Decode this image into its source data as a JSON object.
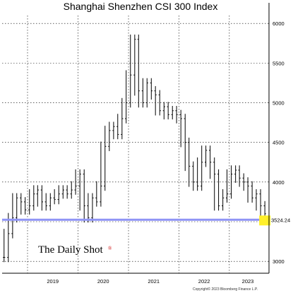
{
  "chart_data": {
    "type": "candlestick",
    "title": "Shanghai Shenzhen CSI 300 Index",
    "xlabel": "",
    "ylabel": "",
    "xlim": [
      "2018-07-01",
      "2023-10-15"
    ],
    "ylim": [
      2850,
      6100
    ],
    "y_ticks": [
      3000,
      3500,
      4000,
      4500,
      5000,
      5500,
      6000
    ],
    "x_ticks": [
      "2019",
      "2020",
      "2021",
      "2022",
      "2023"
    ],
    "x_tick_dates": [
      "2019-01-01",
      "2020-01-01",
      "2021-01-01",
      "2022-01-01",
      "2023-01-01"
    ],
    "grid": true,
    "y_axis_side": "right",
    "reference_line": {
      "value": 3524.24,
      "label": "3524.24",
      "color": "#8f94f5"
    },
    "last_value_marker_color": "#ffef2a",
    "series": [
      {
        "x": [
          "2018-07-15",
          "2018-08-15",
          "2018-09-15",
          "2018-10-15",
          "2018-11-15",
          "2018-12-15",
          "2019-01-15",
          "2019-02-15",
          "2019-03-15",
          "2019-04-15",
          "2019-05-15",
          "2019-06-15",
          "2019-07-15",
          "2019-08-15",
          "2019-09-15",
          "2019-10-15",
          "2019-11-15",
          "2019-12-15",
          "2020-01-15",
          "2020-02-15",
          "2020-03-15",
          "2020-04-15",
          "2020-05-15",
          "2020-06-15",
          "2020-07-15",
          "2020-08-15",
          "2020-09-15",
          "2020-10-15",
          "2020-11-15",
          "2020-12-15",
          "2021-01-15",
          "2021-02-15",
          "2021-03-15",
          "2021-04-15",
          "2021-05-15",
          "2021-06-15",
          "2021-07-15",
          "2021-08-15",
          "2021-09-15",
          "2021-10-15",
          "2021-11-15",
          "2021-12-15",
          "2022-01-15",
          "2022-02-15",
          "2022-03-15",
          "2022-04-15",
          "2022-05-15",
          "2022-06-15",
          "2022-07-15",
          "2022-08-15",
          "2022-09-15",
          "2022-10-15",
          "2022-11-15",
          "2022-12-15",
          "2023-01-15",
          "2023-02-15",
          "2023-03-15",
          "2023-04-15",
          "2023-05-15",
          "2023-06-15",
          "2023-07-15",
          "2023-08-15",
          "2023-09-15"
        ],
        "values": [
          3050,
          3350,
          3550,
          3800,
          3750,
          3650,
          3700,
          3850,
          3900,
          3750,
          3700,
          3800,
          3780,
          3850,
          3900,
          3850,
          3900,
          3950,
          4100,
          3700,
          3550,
          3800,
          3750,
          3950,
          4450,
          4650,
          4700,
          4600,
          4800,
          5000,
          5350,
          5800,
          5150,
          5000,
          5250,
          5150,
          5100,
          4900,
          4950,
          4850,
          4900,
          4850,
          4800,
          4500,
          4200,
          4000,
          3950,
          4250,
          4400,
          4250,
          4100,
          3700,
          3800,
          3850,
          4100,
          4150,
          4050,
          4000,
          3950,
          3800,
          3850,
          3700,
          3600
        ]
      }
    ]
  },
  "axis": {
    "y_labels": [
      "6000",
      "5500",
      "5000",
      "4500",
      "4000",
      "3000"
    ],
    "x_labels": [
      "2019",
      "2020",
      "2021",
      "2022",
      "2023"
    ]
  },
  "brand": {
    "name": "The Daily Shot",
    "mark": "®"
  },
  "credit": "Copyright© 2023 Bloomberg Finance L.P."
}
